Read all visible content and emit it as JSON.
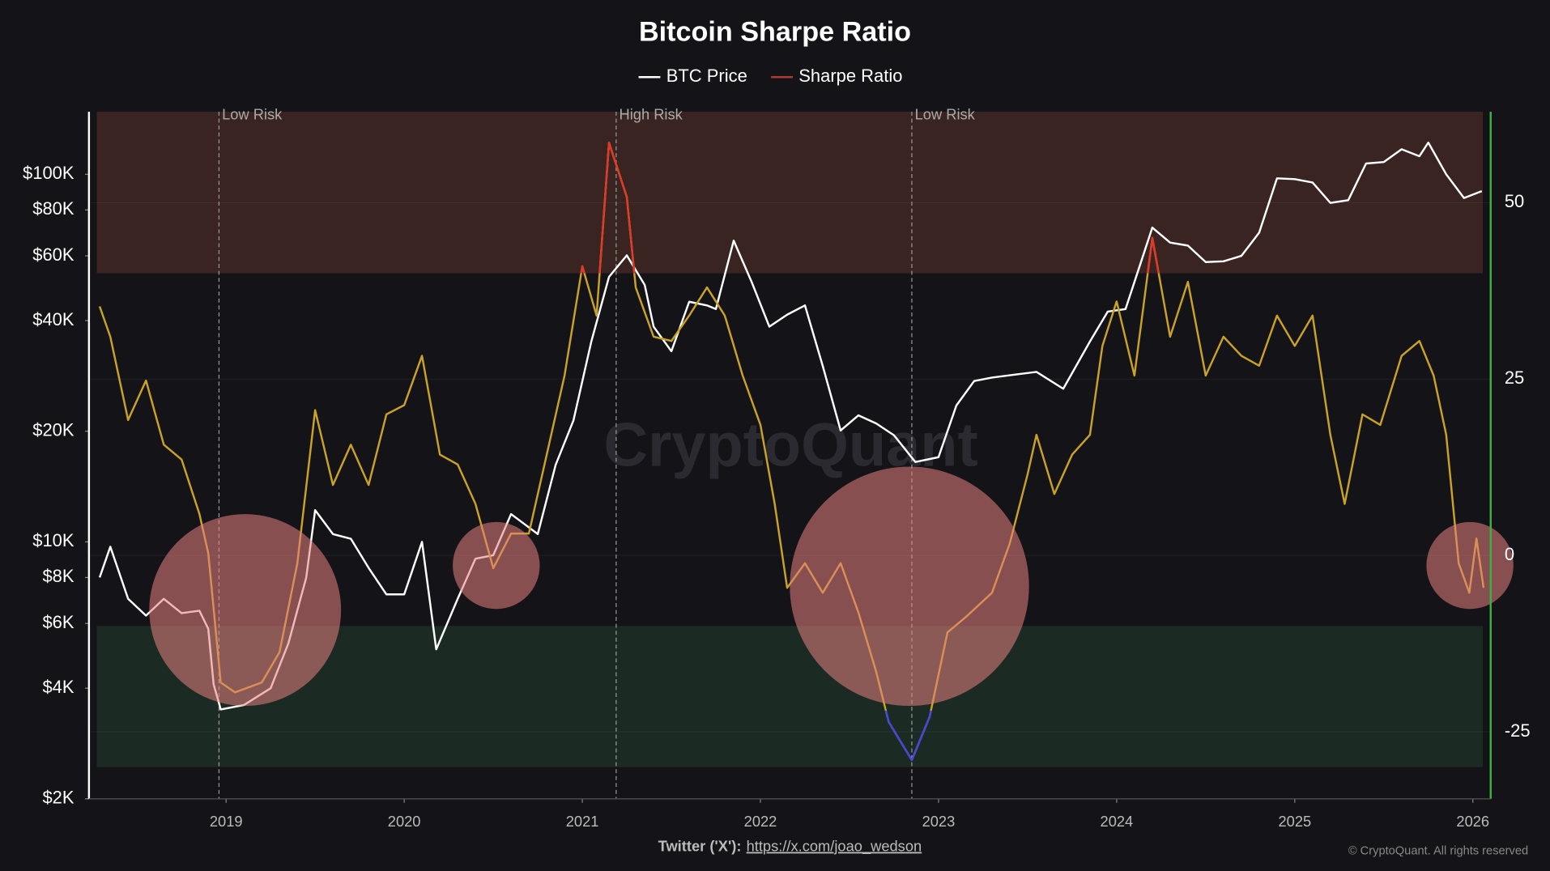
{
  "chart_data": {
    "type": "line",
    "title": "Bitcoin Sharpe Ratio",
    "watermark": "CryptoQuant",
    "footer_prefix": "Twitter ('X'):",
    "footer_link": "https://x.com/joao_wedson",
    "copyright": "© CryptoQuant. All rights reserved",
    "xlim": [
      2018.23,
      2026.1
    ],
    "xticks": [
      2019,
      2020,
      2021,
      2022,
      2023,
      2024,
      2025,
      2026
    ],
    "ylim": [
      2000,
      148000
    ],
    "log_y": true,
    "yticks": [
      {
        "value": 2000,
        "label": "$2K"
      },
      {
        "value": 4000,
        "label": "$4K"
      },
      {
        "value": 6000,
        "label": "$6K"
      },
      {
        "value": 8000,
        "label": "$8K"
      },
      {
        "value": 10000,
        "label": "$10K"
      },
      {
        "value": 20000,
        "label": "$20K"
      },
      {
        "value": 40000,
        "label": "$40K"
      },
      {
        "value": 60000,
        "label": "$60K"
      },
      {
        "value": 80000,
        "label": "$80K"
      },
      {
        "value": 100000,
        "label": "$100K"
      }
    ],
    "y2lim": [
      -34.5,
      62.9
    ],
    "y2ticks": [
      -25,
      0,
      25,
      50
    ],
    "bands": [
      {
        "from": 40,
        "to": 62.9,
        "color": "#3a2422"
      },
      {
        "from": -30,
        "to": -10,
        "color": "#1c2a24"
      }
    ],
    "annotations": [
      {
        "x": 2018.96,
        "text": "Low Risk"
      },
      {
        "x": 2021.19,
        "text": "High Risk"
      },
      {
        "x": 2022.85,
        "text": "Low Risk"
      }
    ],
    "series": [
      {
        "name": "BTC Price",
        "color": "#ffffff",
        "legend_color": "#ffffff",
        "x": [
          2018.29,
          2018.35,
          2018.45,
          2018.55,
          2018.65,
          2018.75,
          2018.85,
          2018.9,
          2018.93,
          2018.97,
          2019.1,
          2019.25,
          2019.35,
          2019.45,
          2019.5,
          2019.6,
          2019.7,
          2019.8,
          2019.9,
          2020.0,
          2020.1,
          2020.18,
          2020.3,
          2020.4,
          2020.5,
          2020.6,
          2020.75,
          2020.85,
          2020.95,
          2021.05,
          2021.15,
          2021.25,
          2021.35,
          2021.4,
          2021.5,
          2021.6,
          2021.7,
          2021.75,
          2021.85,
          2021.95,
          2022.05,
          2022.15,
          2022.25,
          2022.35,
          2022.45,
          2022.55,
          2022.65,
          2022.75,
          2022.87,
          2023.0,
          2023.1,
          2023.2,
          2023.3,
          2023.45,
          2023.55,
          2023.7,
          2023.85,
          2023.95,
          2024.05,
          2024.2,
          2024.3,
          2024.4,
          2024.5,
          2024.6,
          2024.7,
          2024.8,
          2024.9,
          2025.0,
          2025.1,
          2025.2,
          2025.3,
          2025.4,
          2025.5,
          2025.6,
          2025.7,
          2025.75,
          2025.85,
          2025.95,
          2026.05
        ],
        "values": [
          8000,
          9700,
          7000,
          6300,
          7000,
          6400,
          6500,
          5800,
          4100,
          3500,
          3600,
          4000,
          5300,
          8000,
          12200,
          10500,
          10200,
          8500,
          7200,
          7200,
          10000,
          5100,
          7000,
          9000,
          9200,
          11900,
          10500,
          16200,
          21400,
          35000,
          52600,
          60200,
          50000,
          38500,
          33000,
          45000,
          44000,
          43000,
          66000,
          51000,
          38500,
          41500,
          44000,
          30100,
          20100,
          22100,
          21000,
          19500,
          16500,
          17000,
          23500,
          27400,
          28000,
          28600,
          29000,
          26100,
          35100,
          42300,
          43000,
          71600,
          65200,
          64000,
          57700,
          58000,
          60000,
          69400,
          97500,
          97000,
          95000,
          83600,
          85000,
          107000,
          108000,
          117000,
          112000,
          122000,
          100000,
          86200,
          90000
        ]
      },
      {
        "name": "Sharpe Ratio",
        "color": "#c9a227",
        "legend_color": "#b03a2e",
        "axis": "y2",
        "zone_colors": [
          {
            "above": 40,
            "color": "#e0392b"
          },
          {
            "below": -22,
            "color": "#4545e0"
          }
        ],
        "x": [
          2018.29,
          2018.35,
          2018.45,
          2018.55,
          2018.65,
          2018.75,
          2018.85,
          2018.9,
          2018.97,
          2019.05,
          2019.2,
          2019.3,
          2019.4,
          2019.5,
          2019.6,
          2019.7,
          2019.8,
          2019.9,
          2020.0,
          2020.1,
          2020.2,
          2020.3,
          2020.4,
          2020.5,
          2020.6,
          2020.7,
          2020.8,
          2020.9,
          2021.0,
          2021.08,
          2021.15,
          2021.25,
          2021.3,
          2021.4,
          2021.5,
          2021.6,
          2021.7,
          2021.8,
          2021.9,
          2022.0,
          2022.08,
          2022.15,
          2022.25,
          2022.35,
          2022.45,
          2022.55,
          2022.65,
          2022.72,
          2022.85,
          2022.95,
          2023.05,
          2023.15,
          2023.3,
          2023.4,
          2023.5,
          2023.55,
          2023.65,
          2023.75,
          2023.85,
          2023.92,
          2024.0,
          2024.1,
          2024.2,
          2024.3,
          2024.4,
          2024.5,
          2024.6,
          2024.7,
          2024.8,
          2024.9,
          2025.0,
          2025.1,
          2025.2,
          2025.28,
          2025.38,
          2025.48,
          2025.6,
          2025.7,
          2025.78,
          2025.85,
          2025.92,
          2025.98,
          2026.02,
          2026.06
        ],
        "values": [
          35.3,
          31,
          19.2,
          24.8,
          15.7,
          13.6,
          5.9,
          0.3,
          -18,
          -19.4,
          -18,
          -13.7,
          -1.1,
          20.6,
          10,
          15.7,
          10,
          20,
          21.3,
          28.3,
          14.3,
          12.9,
          7.3,
          -1.8,
          3.1,
          3.1,
          14.3,
          25.5,
          41,
          34,
          58.5,
          50.8,
          38,
          31,
          30.4,
          34,
          38,
          34,
          25.5,
          18.5,
          7.3,
          -4.6,
          -1.1,
          -5.3,
          -1.1,
          -8.1,
          -16.5,
          -23.6,
          -29,
          -22.9,
          -10.9,
          -8.8,
          -5.3,
          1.7,
          11.5,
          17.1,
          8.7,
          14.3,
          17.1,
          29.7,
          36,
          25.5,
          45,
          31,
          38.8,
          25.5,
          31,
          28.3,
          26.9,
          34,
          29.7,
          34,
          17.1,
          7.3,
          20,
          18.5,
          28.3,
          30.4,
          25.5,
          17.1,
          -1.1,
          -5.3,
          2.4,
          -4.6
        ]
      }
    ]
  }
}
